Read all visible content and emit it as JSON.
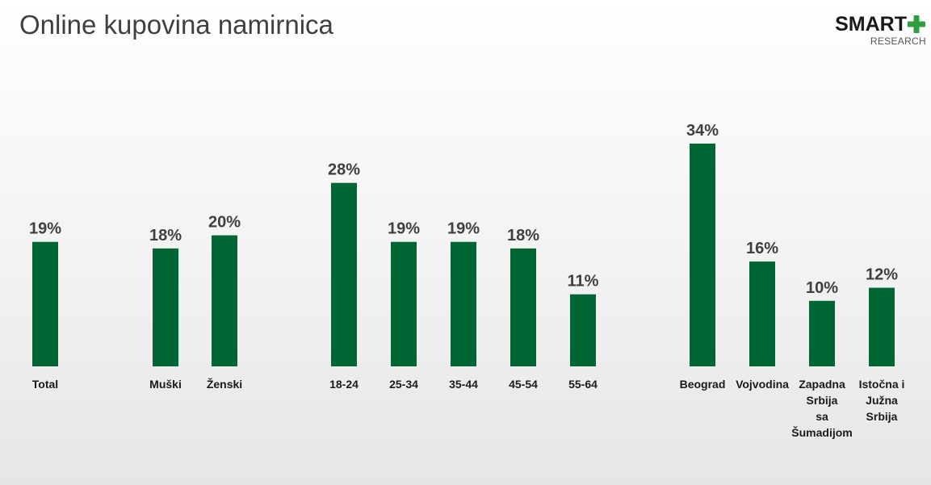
{
  "title": "Online kupovina namirnica",
  "logo": {
    "brand": "SMART",
    "sub": "RESEARCH",
    "plus_color": "#2e9e3e"
  },
  "chart_data": {
    "type": "bar",
    "title": "Online kupovina namirnica",
    "xlabel": "",
    "ylabel": "",
    "ylim": [
      0,
      40
    ],
    "grid": false,
    "legend": "none",
    "bar_color": "#006633",
    "categories": [
      [
        "Total"
      ],
      [
        "Muški"
      ],
      [
        "Ženski"
      ],
      [
        "18-24"
      ],
      [
        "25-34"
      ],
      [
        "35-44"
      ],
      [
        "45-54"
      ],
      [
        "55-64"
      ],
      [
        "Beograd"
      ],
      [
        "Vojvodina"
      ],
      [
        "Zapadna",
        "Srbija",
        "sa",
        "Šumadijom"
      ],
      [
        "Istočna i",
        "Južna",
        "Srbija"
      ]
    ],
    "values": [
      19,
      18,
      20,
      28,
      19,
      19,
      18,
      11,
      34,
      16,
      10,
      12
    ],
    "value_labels": [
      "19%",
      "18%",
      "20%",
      "28%",
      "19%",
      "19%",
      "18%",
      "11%",
      "34%",
      "16%",
      "10%",
      "12%"
    ]
  }
}
